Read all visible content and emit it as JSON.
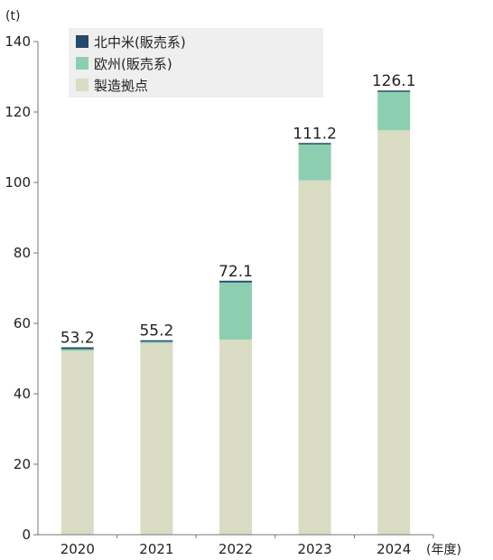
{
  "chart_data": {
    "type": "bar",
    "stacked": true,
    "categories": [
      "2020",
      "2021",
      "2022",
      "2023",
      "2024"
    ],
    "series": [
      {
        "name": "製造拠点",
        "color": "#d9dcc3",
        "values": [
          52.2,
          54.4,
          55.4,
          100.6,
          114.8
        ]
      },
      {
        "name": "欧州(販売系)",
        "color": "#8ccfb0",
        "values": [
          0.5,
          0.4,
          16.2,
          10.2,
          10.9
        ]
      },
      {
        "name": "北中米(販売系)",
        "color": "#24496b",
        "values": [
          0.5,
          0.4,
          0.5,
          0.4,
          0.4
        ]
      }
    ],
    "totals": [
      "53.2",
      "55.2",
      "72.1",
      "111.2",
      "126.1"
    ],
    "ylabel": "(t)",
    "xlabel": "(年度)",
    "ylim": [
      0,
      140
    ],
    "yticks": [
      0,
      20,
      40,
      60,
      80,
      100,
      120,
      140
    ],
    "legend_order": [
      "北中米(販売系)",
      "欧州(販売系)",
      "製造拠点"
    ],
    "legend_position": "top-left",
    "grid": false
  }
}
